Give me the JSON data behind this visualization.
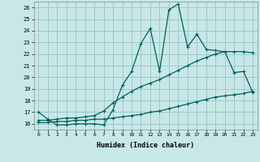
{
  "xlabel": "Humidex (Indice chaleur)",
  "background_color": "#c8e8e8",
  "grid_color": "#a0c8c8",
  "line_color": "#006060",
  "xlim": [
    -0.5,
    23.5
  ],
  "ylim": [
    15.5,
    26.5
  ],
  "yticks": [
    16,
    17,
    18,
    19,
    20,
    21,
    22,
    23,
    24,
    25,
    26
  ],
  "xticks": [
    0,
    1,
    2,
    3,
    4,
    5,
    6,
    7,
    8,
    9,
    10,
    11,
    12,
    13,
    14,
    15,
    16,
    17,
    18,
    19,
    20,
    21,
    22,
    23
  ],
  "line1_x": [
    0,
    1,
    2,
    3,
    4,
    5,
    6,
    7,
    8,
    9,
    10,
    11,
    12,
    13,
    14,
    15,
    16,
    17,
    18,
    19,
    20,
    21,
    22,
    23
  ],
  "line1_y": [
    17.0,
    16.4,
    15.9,
    15.9,
    16.0,
    16.0,
    16.0,
    15.9,
    17.2,
    19.3,
    20.5,
    22.9,
    24.2,
    20.5,
    25.8,
    26.3,
    22.6,
    23.7,
    22.4,
    22.3,
    22.2,
    20.4,
    20.5,
    18.7
  ],
  "line2_x": [
    0,
    1,
    2,
    3,
    4,
    5,
    6,
    7,
    8,
    9,
    10,
    11,
    12,
    13,
    14,
    15,
    16,
    17,
    18,
    19,
    20,
    21,
    22,
    23
  ],
  "line2_y": [
    16.3,
    16.3,
    16.4,
    16.5,
    16.5,
    16.6,
    16.7,
    17.1,
    17.8,
    18.3,
    18.8,
    19.2,
    19.5,
    19.8,
    20.2,
    20.6,
    21.0,
    21.4,
    21.7,
    22.0,
    22.2,
    22.2,
    22.2,
    22.1
  ],
  "line3_x": [
    0,
    1,
    2,
    3,
    4,
    5,
    6,
    7,
    8,
    9,
    10,
    11,
    12,
    13,
    14,
    15,
    16,
    17,
    18,
    19,
    20,
    21,
    22,
    23
  ],
  "line3_y": [
    16.1,
    16.1,
    16.2,
    16.2,
    16.3,
    16.3,
    16.4,
    16.4,
    16.5,
    16.6,
    16.7,
    16.8,
    17.0,
    17.1,
    17.3,
    17.5,
    17.7,
    17.9,
    18.1,
    18.3,
    18.4,
    18.5,
    18.6,
    18.8
  ]
}
